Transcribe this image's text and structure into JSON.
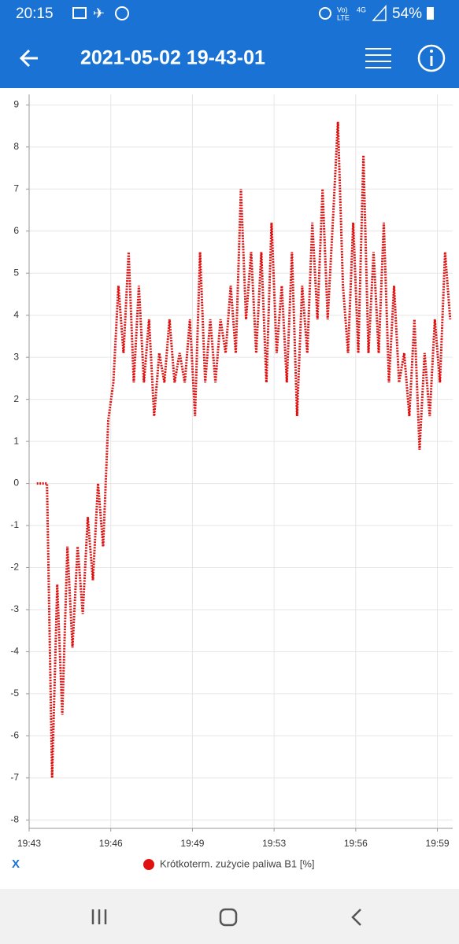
{
  "status_bar": {
    "time": "20:15",
    "battery": "54%"
  },
  "app_bar": {
    "title": "2021-05-02 19-43-01"
  },
  "chart_data": {
    "type": "line",
    "xlabel": "X",
    "x": [
      43.3,
      43.5,
      43.7,
      43.9,
      44.1,
      44.3,
      44.5,
      44.7,
      44.9,
      45.1,
      45.3,
      45.5,
      45.7,
      45.9,
      46.1,
      46.3,
      46.5,
      46.7,
      46.9,
      47.1,
      47.3,
      47.5,
      47.7,
      47.9,
      48.1,
      48.3,
      48.5,
      48.7,
      48.9,
      49.1,
      49.3,
      49.5,
      49.7,
      49.9,
      50.1,
      50.3,
      50.5,
      50.7,
      50.9,
      51.1,
      51.3,
      51.5,
      51.7,
      51.9,
      52.1,
      52.3,
      52.5,
      52.7,
      52.9,
      53.1,
      53.3,
      53.5,
      53.7,
      53.9,
      54.1,
      54.3,
      54.5,
      54.7,
      54.9,
      55.1,
      55.3,
      55.5,
      55.7,
      55.9,
      56.1,
      56.3,
      56.5,
      56.7,
      56.9,
      57.1,
      57.3,
      57.5,
      57.7,
      57.9,
      58.1,
      58.3,
      58.5,
      58.7,
      58.9,
      59.1,
      59.3,
      59.5
    ],
    "series": [
      {
        "name": "Krótkoterm. zużycie paliwa B1 [%]",
        "color": "#e01010",
        "values": [
          0,
          0,
          0,
          -7,
          -2.4,
          -5.5,
          -1.5,
          -3.9,
          -1.5,
          -3.1,
          -0.8,
          -2.3,
          0,
          -1.5,
          1.5,
          2.4,
          4.7,
          3.1,
          5.5,
          2.4,
          4.7,
          2.4,
          3.9,
          1.6,
          3.1,
          2.4,
          3.9,
          2.4,
          3.1,
          2.4,
          3.9,
          1.6,
          5.5,
          2.4,
          3.9,
          2.4,
          3.9,
          3.1,
          4.7,
          3.1,
          7.0,
          3.9,
          5.5,
          3.1,
          5.5,
          2.4,
          6.2,
          3.1,
          4.7,
          2.4,
          5.5,
          1.6,
          4.7,
          3.1,
          6.2,
          3.9,
          7.0,
          3.9,
          6.2,
          8.6,
          4.7,
          3.1,
          6.2,
          3.1,
          7.8,
          3.1,
          5.5,
          3.1,
          6.2,
          2.4,
          4.7,
          2.4,
          3.1,
          1.6,
          3.9,
          0.8,
          3.1,
          1.6,
          3.9,
          2.4,
          5.5,
          3.9
        ]
      }
    ],
    "xlim": [
      43,
      59.6
    ],
    "xticks": [
      {
        "value": 43,
        "label": "19:43"
      },
      {
        "value": 46.2,
        "label": "19:46"
      },
      {
        "value": 49.4,
        "label": "19:49"
      },
      {
        "value": 52.6,
        "label": "19:53"
      },
      {
        "value": 55.8,
        "label": "19:56"
      },
      {
        "value": 59,
        "label": "19:59"
      }
    ],
    "ylim": [
      -8.2,
      9.25
    ],
    "yticks": [
      -8,
      -7,
      -6,
      -5,
      -4,
      -3,
      -2,
      -1,
      0,
      1,
      2,
      3,
      4,
      5,
      6,
      7,
      8,
      9
    ],
    "grid": true,
    "legend": "bottom"
  }
}
